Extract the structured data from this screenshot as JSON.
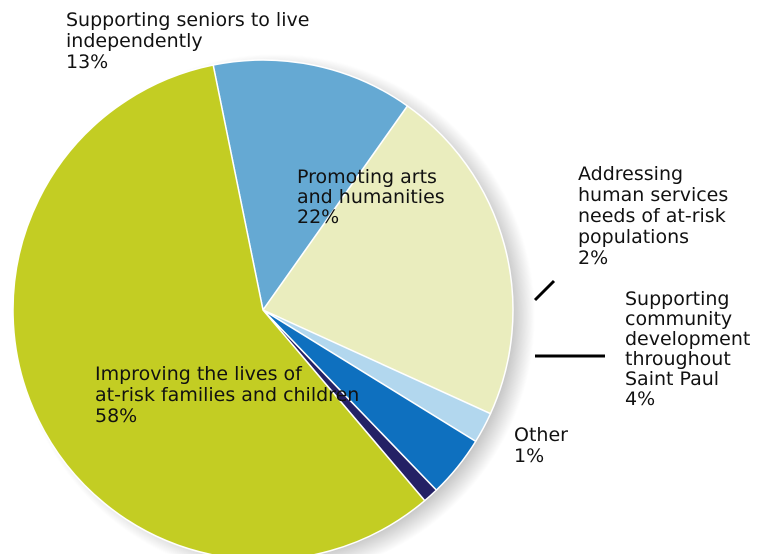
{
  "chart_data": {
    "type": "pie",
    "title": "",
    "slices": [
      {
        "label_lines": [
          "Supporting seniors to live",
          "independently"
        ],
        "value": 13,
        "value_label": "13%",
        "color": "#65a9d3"
      },
      {
        "label_lines": [
          "Promoting arts",
          "and humanities"
        ],
        "value": 22,
        "value_label": "22%",
        "color": "#eaedbe"
      },
      {
        "label_lines": [
          "Addressing",
          "human services",
          "needs of at-risk",
          "populations"
        ],
        "value": 2,
        "value_label": "2%",
        "color": "#b2d7ee"
      },
      {
        "label_lines": [
          "Supporting",
          "community",
          "development",
          "throughout",
          "Saint Paul"
        ],
        "value": 4,
        "value_label": "4%",
        "color": "#0e70bf"
      },
      {
        "label_lines": [
          "Other"
        ],
        "value": 1,
        "value_label": "1%",
        "color": "#242165"
      },
      {
        "label_lines": [
          "Improving the lives of",
          "at-risk families and children"
        ],
        "value": 58,
        "value_label": "58%",
        "color": "#c3cd23"
      }
    ],
    "legend": "none"
  }
}
